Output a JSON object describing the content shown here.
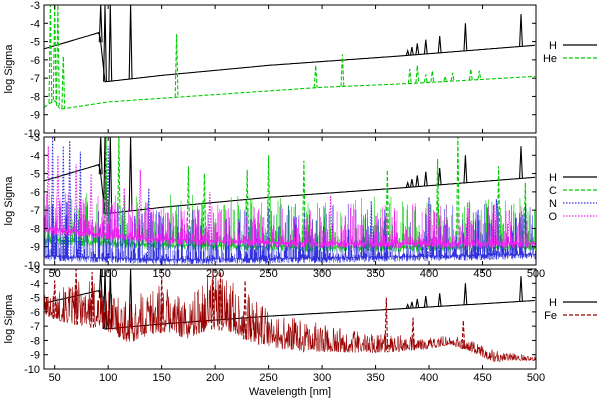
{
  "chart_data": [
    {
      "type": "line",
      "ylabel": "log Sigma",
      "xlabel": "",
      "xlim": [
        40,
        500
      ],
      "ylim": [
        -10,
        -3
      ],
      "x_ticks": [],
      "y_ticks": [
        -3,
        -4,
        -5,
        -6,
        -7,
        -8,
        -9,
        -10
      ],
      "legend_position": "right",
      "grid": false,
      "series": [
        {
          "name": "H",
          "color": "#000000",
          "dash": "solid",
          "baseline": [
            [
              40,
              -5.4
            ],
            [
              92,
              -4.5
            ],
            [
              97,
              -7.2
            ],
            [
              150,
              -6.85
            ],
            [
              250,
              -6.3
            ],
            [
              370,
              -5.8
            ],
            [
              500,
              -5.2
            ]
          ],
          "lines": [
            [
              93,
              -3.0
            ],
            [
              97,
              -3.0
            ],
            [
              102,
              -3.0
            ],
            [
              121,
              -3.0
            ],
            [
              380,
              -5.5
            ],
            [
              384,
              -5.3
            ],
            [
              389,
              -5.1
            ],
            [
              397,
              -4.9
            ],
            [
              410,
              -4.7
            ],
            [
              434,
              -4.0
            ],
            [
              486,
              -3.5
            ]
          ]
        },
        {
          "name": "He",
          "color": "#00cc00",
          "dash": "dashed",
          "baseline": [
            [
              40,
              -8.6
            ],
            [
              50,
              -8.2
            ],
            [
              55,
              -8.7
            ],
            [
              100,
              -8.3
            ],
            [
              200,
              -7.9
            ],
            [
              300,
              -7.5
            ],
            [
              380,
              -7.3
            ],
            [
              500,
              -6.9
            ]
          ],
          "lines": [
            [
              46,
              -3.0
            ],
            [
              50,
              -3.0
            ],
            [
              53,
              -3.0
            ],
            [
              58,
              -5.8
            ],
            [
              164,
              -4.6
            ],
            [
              294,
              -6.3
            ],
            [
              319,
              -5.7
            ],
            [
              382,
              -6.5
            ],
            [
              389,
              -6.3
            ],
            [
              397,
              -6.8
            ],
            [
              403,
              -6.6
            ],
            [
              415,
              -6.9
            ],
            [
              422,
              -6.7
            ],
            [
              439,
              -6.5
            ],
            [
              447,
              -6.6
            ],
            [
              471,
              -7.0
            ]
          ]
        }
      ]
    },
    {
      "type": "line",
      "ylabel": "log Sigma",
      "xlabel": "",
      "xlim": [
        40,
        500
      ],
      "ylim": [
        -10,
        -3
      ],
      "x_ticks": [
        50,
        100,
        150,
        200,
        250,
        300,
        350,
        400,
        450,
        500
      ],
      "y_ticks": [
        -3,
        -4,
        -5,
        -6,
        -7,
        -8,
        -9,
        -10
      ],
      "legend_position": "right",
      "grid": false,
      "series": [
        {
          "name": "H",
          "color": "#000000",
          "dash": "solid",
          "baseline": [
            [
              40,
              -5.4
            ],
            [
              92,
              -4.5
            ],
            [
              97,
              -7.2
            ],
            [
              150,
              -6.85
            ],
            [
              250,
              -6.3
            ],
            [
              370,
              -5.8
            ],
            [
              500,
              -5.2
            ]
          ],
          "lines": [
            [
              93,
              -3.0
            ],
            [
              97,
              -3.0
            ],
            [
              102,
              -3.0
            ],
            [
              121,
              -3.0
            ],
            [
              380,
              -5.5
            ],
            [
              384,
              -5.3
            ],
            [
              389,
              -5.1
            ],
            [
              397,
              -4.9
            ],
            [
              410,
              -4.7
            ],
            [
              434,
              -4.0
            ],
            [
              486,
              -3.5
            ]
          ]
        },
        {
          "name": "C",
          "color": "#00cc00",
          "dash": "dashed",
          "noise": {
            "baseline": [
              [
                40,
                -8.6
              ],
              [
                150,
                -8.9
              ],
              [
                300,
                -9.0
              ],
              [
                500,
                -9.0
              ]
            ],
            "density": 1.6,
            "amplitude": 2.8,
            "seed": 7
          },
          "lines": [
            [
              98,
              -3.0
            ],
            [
              110,
              -3.0
            ],
            [
              175,
              -4.6
            ],
            [
              190,
              -5.0
            ],
            [
              230,
              -4.8
            ],
            [
              250,
              -4.0
            ],
            [
              283,
              -4.3
            ],
            [
              361,
              -4.8
            ],
            [
              408,
              -4.2
            ],
            [
              427,
              -3.0
            ],
            [
              465,
              -4.6
            ],
            [
              490,
              -5.5
            ]
          ]
        },
        {
          "name": "N",
          "color": "#3333dd",
          "dash": "dotted",
          "noise": {
            "baseline": [
              [
                40,
                -9.5
              ],
              [
                150,
                -9.7
              ],
              [
                300,
                -9.6
              ],
              [
                500,
                -9.4
              ]
            ],
            "density": 1.8,
            "amplitude": 3.0,
            "seed": 13
          },
          "lines": [
            [
              48,
              -3.0
            ],
            [
              58,
              -3.5
            ],
            [
              64,
              -3.2
            ],
            [
              74,
              -3.8
            ],
            [
              100,
              -3.5
            ],
            [
              138,
              -5.8
            ],
            [
              346,
              -6.5
            ],
            [
              400,
              -6.3
            ],
            [
              463,
              -6.4
            ]
          ]
        },
        {
          "name": "O",
          "color": "#ee22ee",
          "dash": "dotted",
          "noise": {
            "baseline": [
              [
                40,
                -8.0
              ],
              [
                150,
                -8.6
              ],
              [
                300,
                -8.8
              ],
              [
                500,
                -8.8
              ]
            ],
            "density": 2.0,
            "amplitude": 2.2,
            "seed": 29
          },
          "lines": [
            [
              44,
              -3.5
            ],
            [
              53,
              -4.0
            ],
            [
              70,
              -4.5
            ],
            [
              84,
              -5.0
            ],
            [
              115,
              -5.8
            ],
            [
              130,
              -4.8
            ],
            [
              195,
              -6.0
            ],
            [
              308,
              -6.2
            ],
            [
              436,
              -6.6
            ],
            [
              475,
              -7.0
            ]
          ]
        }
      ]
    },
    {
      "type": "line",
      "ylabel": "log Sigma",
      "xlabel": "Wavelength [nm]",
      "xlim": [
        40,
        500
      ],
      "ylim": [
        -10,
        -3
      ],
      "x_ticks": [
        50,
        100,
        150,
        200,
        250,
        300,
        350,
        400,
        450,
        500
      ],
      "y_ticks": [
        -3,
        -4,
        -5,
        -6,
        -7,
        -8,
        -9,
        -10
      ],
      "legend_position": "right",
      "grid": false,
      "series": [
        {
          "name": "H",
          "color": "#000000",
          "dash": "solid",
          "baseline": [
            [
              40,
              -5.4
            ],
            [
              92,
              -4.5
            ],
            [
              97,
              -7.2
            ],
            [
              150,
              -6.85
            ],
            [
              250,
              -6.3
            ],
            [
              370,
              -5.8
            ],
            [
              500,
              -5.2
            ]
          ],
          "lines": [
            [
              93,
              -3.0
            ],
            [
              97,
              -3.0
            ],
            [
              102,
              -3.0
            ],
            [
              121,
              -3.0
            ],
            [
              380,
              -5.5
            ],
            [
              384,
              -5.3
            ],
            [
              389,
              -5.1
            ],
            [
              397,
              -4.9
            ],
            [
              410,
              -4.7
            ],
            [
              434,
              -4.0
            ],
            [
              486,
              -3.5
            ]
          ]
        },
        {
          "name": "Fe",
          "color": "#990000",
          "dash": "dashed",
          "band": [
            [
              40,
              -6.2,
              -4.8
            ],
            [
              60,
              -6.8,
              -4.2
            ],
            [
              80,
              -7.0,
              -3.5
            ],
            [
              100,
              -7.4,
              -4.0
            ],
            [
              120,
              -8.2,
              -5.5
            ],
            [
              140,
              -7.6,
              -4.0
            ],
            [
              155,
              -7.4,
              -4.2
            ],
            [
              175,
              -7.9,
              -5.2
            ],
            [
              195,
              -7.2,
              -3.0
            ],
            [
              215,
              -7.4,
              -3.8
            ],
            [
              235,
              -8.2,
              -5.0
            ],
            [
              255,
              -8.5,
              -6.2
            ],
            [
              280,
              -8.8,
              -6.5
            ],
            [
              310,
              -8.8,
              -7.0
            ],
            [
              340,
              -8.9,
              -7.4
            ],
            [
              370,
              -8.8,
              -7.6
            ],
            [
              400,
              -8.6,
              -7.8
            ],
            [
              420,
              -8.3,
              -7.6
            ],
            [
              440,
              -8.8,
              -8.0
            ],
            [
              460,
              -9.5,
              -8.7
            ],
            [
              480,
              -9.4,
              -8.9
            ],
            [
              500,
              -9.4,
              -9.0
            ]
          ],
          "lines": [
            [
              50,
              -3.8
            ],
            [
              70,
              -3.0
            ],
            [
              85,
              -3.2
            ],
            [
              150,
              -3.5
            ],
            [
              198,
              -3.0
            ],
            [
              205,
              -3.2
            ],
            [
              228,
              -3.8
            ],
            [
              360,
              -5.0
            ],
            [
              385,
              -6.4
            ],
            [
              432,
              -6.6
            ]
          ]
        }
      ]
    }
  ]
}
